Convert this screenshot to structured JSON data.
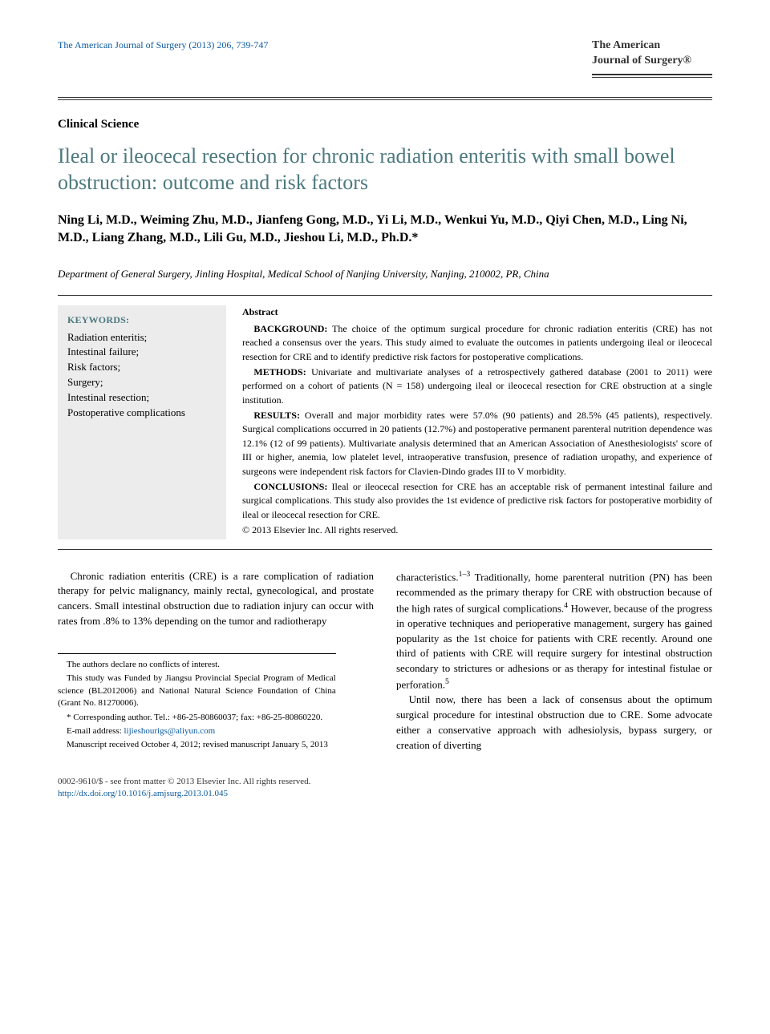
{
  "header": {
    "citation": "The American Journal of Surgery (2013) 206, 739-747",
    "logo": {
      "line1": "The American",
      "line2": "Journal of Surgery®"
    }
  },
  "section_label": "Clinical Science",
  "title": "Ileal or ileocecal resection for chronic radiation enteritis with small bowel obstruction: outcome and risk factors",
  "authors": "Ning Li, M.D., Weiming Zhu, M.D., Jianfeng Gong, M.D., Yi Li, M.D., Wenkui Yu, M.D., Qiyi Chen, M.D., Ling Ni, M.D., Liang Zhang, M.D., Lili Gu, M.D., Jieshou Li, M.D., Ph.D.*",
  "affiliation": "Department of General Surgery, Jinling Hospital, Medical School of Nanjing University, Nanjing, 210002, PR, China",
  "keywords": {
    "title": "KEYWORDS:",
    "items": "Radiation enteritis;\nIntestinal failure;\nRisk factors;\nSurgery;\nIntestinal resection;\nPostoperative complications"
  },
  "abstract": {
    "heading": "Abstract",
    "background_label": "BACKGROUND:",
    "background": "The choice of the optimum surgical procedure for chronic radiation enteritis (CRE) has not reached a consensus over the years. This study aimed to evaluate the outcomes in patients undergoing ileal or ileocecal resection for CRE and to identify predictive risk factors for postoperative complications.",
    "methods_label": "METHODS:",
    "methods": "Univariate and multivariate analyses of a retrospectively gathered database (2001 to 2011) were performed on a cohort of patients (N = 158) undergoing ileal or ileocecal resection for CRE obstruction at a single institution.",
    "results_label": "RESULTS:",
    "results": "Overall and major morbidity rates were 57.0% (90 patients) and 28.5% (45 patients), respectively. Surgical complications occurred in 20 patients (12.7%) and postoperative permanent parenteral nutrition dependence was 12.1% (12 of 99 patients). Multivariate analysis determined that an American Association of Anesthesiologists' score of III or higher, anemia, low platelet level, intraoperative transfusion, presence of radiation uropathy, and experience of surgeons were independent risk factors for Clavien-Dindo grades III to V morbidity.",
    "conclusions_label": "CONCLUSIONS:",
    "conclusions": "Ileal or ileocecal resection for CRE has an acceptable risk of permanent intestinal failure and surgical complications. This study also provides the 1st evidence of predictive risk factors for postoperative morbidity of ileal or ileocecal resection for CRE.",
    "copyright": "© 2013 Elsevier Inc. All rights reserved."
  },
  "body": {
    "left_p1": "Chronic radiation enteritis (CRE) is a rare complication of radiation therapy for pelvic malignancy, mainly rectal, gynecological, and prostate cancers. Small intestinal obstruction due to radiation injury can occur with rates from .8% to 13% depending on the tumor and radiotherapy",
    "right_p1_pre": "characteristics.",
    "right_p1_sup": "1–3",
    "right_p1_post": " Traditionally, home parenteral nutrition (PN) has been recommended as the primary therapy for CRE with obstruction because of the high rates of surgical complications.",
    "right_p1_sup2": "4",
    "right_p1_tail": " However, because of the progress in operative techniques and perioperative management, surgery has gained popularity as the 1st choice for patients with CRE recently. Around one third of patients with CRE will require surgery for intestinal obstruction secondary to strictures or adhesions or as therapy for intestinal fistulae or perforation.",
    "right_p1_sup3": "5",
    "right_p2": "Until now, there has been a lack of consensus about the optimum surgical procedure for intestinal obstruction due to CRE. Some advocate either a conservative approach with adhesiolysis, bypass surgery, or creation of diverting"
  },
  "footnotes": {
    "f1": "The authors declare no conflicts of interest.",
    "f2": "This study was Funded by Jiangsu Provincial Special Program of Medical science (BL2012006) and National Natural Science Foundation of China (Grant No. 81270006).",
    "f3": "* Corresponding author. Tel.: +86-25-80860037; fax: +86-25-80860220.",
    "f4": "E-mail address: lijieshourigs@aliyun.com",
    "f5": "Manuscript received October 4, 2012; revised manuscript January 5, 2013"
  },
  "bottom": {
    "left1": "0002-9610/$ - see front matter © 2013 Elsevier Inc. All rights reserved.",
    "doi": "http://dx.doi.org/10.1016/j.amjsurg.2013.01.045"
  },
  "colors": {
    "link": "#0b5aa0",
    "title": "#4c797f",
    "keywords_bg": "#ececec"
  }
}
